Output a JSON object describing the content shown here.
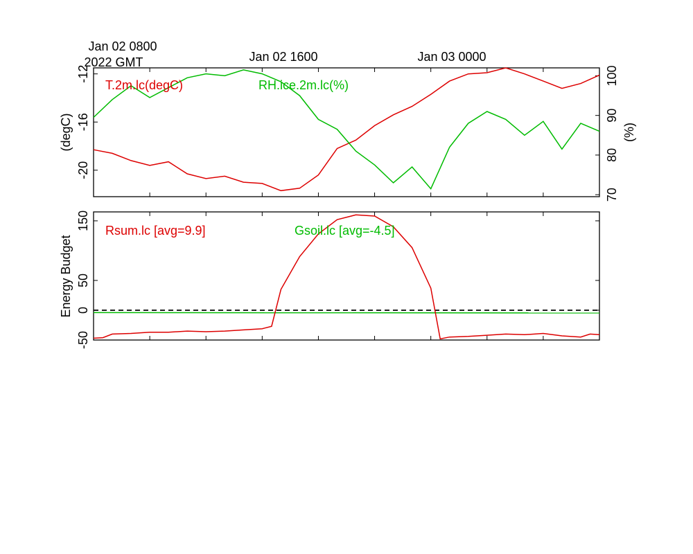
{
  "chart_data": [
    {
      "type": "line",
      "time_axis": {
        "range": [
          "Jan 02 0600",
          "Jan 03 0900"
        ],
        "ticks": [
          "Jan 02 0600",
          "Jan 02 0900",
          "Jan 02 1200",
          "Jan 02 1500",
          "Jan 02 1800",
          "Jan 02 2100",
          "Jan 03 0000",
          "Jan 03 0300",
          "Jan 03 0600"
        ],
        "labels": [
          {
            "time": "Jan 02 0800",
            "text": "Jan 02 0800"
          },
          {
            "time": "Jan 02 1600",
            "text": "Jan 02 1600"
          },
          {
            "time": "Jan 03 0000",
            "text": "Jan 03 0000"
          }
        ],
        "year_label": "2022 GMT"
      },
      "y_left": {
        "label": "(degC)",
        "range": [
          -22.2,
          -11.5
        ],
        "ticks": [
          -20,
          -16,
          -12
        ]
      },
      "y_right": {
        "label": "(%)",
        "range": [
          69.5,
          102
        ],
        "ticks": [
          70,
          80,
          90,
          100
        ]
      },
      "grid": false,
      "series": [
        {
          "name": "T.2m.lc(degC)",
          "axis": "left",
          "color": "#dd0000",
          "x": [
            "Jan 02 0600",
            "Jan 02 0700",
            "Jan 02 0800",
            "Jan 02 0900",
            "Jan 02 1000",
            "Jan 02 1100",
            "Jan 02 1200",
            "Jan 02 1300",
            "Jan 02 1400",
            "Jan 02 1500",
            "Jan 02 1600",
            "Jan 02 1700",
            "Jan 02 1800",
            "Jan 02 1900",
            "Jan 02 2000",
            "Jan 02 2100",
            "Jan 02 2200",
            "Jan 02 2300",
            "Jan 03 0000",
            "Jan 03 0100",
            "Jan 03 0200",
            "Jan 03 0300",
            "Jan 03 0400",
            "Jan 03 0500",
            "Jan 03 0600",
            "Jan 03 0700",
            "Jan 03 0800",
            "Jan 03 0900"
          ],
          "values": [
            -18.3,
            -18.6,
            -19.2,
            -19.6,
            -19.3,
            -20.3,
            -20.7,
            -20.5,
            -21.0,
            -21.1,
            -21.7,
            -21.5,
            -20.4,
            -18.2,
            -17.5,
            -16.3,
            -15.4,
            -14.7,
            -13.7,
            -12.6,
            -12.0,
            -11.9,
            -11.5,
            -12.0,
            -12.6,
            -13.2,
            -12.8,
            -12.1
          ]
        },
        {
          "name": "RH.ice.2m.lc(%)",
          "axis": "right",
          "color": "#00bb00",
          "x": [
            "Jan 02 0600",
            "Jan 02 0700",
            "Jan 02 0800",
            "Jan 02 0900",
            "Jan 02 1000",
            "Jan 02 1100",
            "Jan 02 1200",
            "Jan 02 1300",
            "Jan 02 1400",
            "Jan 02 1500",
            "Jan 02 1600",
            "Jan 02 1700",
            "Jan 02 1800",
            "Jan 02 1900",
            "Jan 02 2000",
            "Jan 02 2100",
            "Jan 02 2200",
            "Jan 02 2300",
            "Jan 03 0000",
            "Jan 03 0100",
            "Jan 03 0200",
            "Jan 03 0300",
            "Jan 03 0400",
            "Jan 03 0500",
            "Jan 03 0600",
            "Jan 03 0700",
            "Jan 03 0800",
            "Jan 03 0900"
          ],
          "values": [
            89.5,
            94.0,
            97.5,
            94.5,
            97.0,
            99.5,
            100.5,
            100.0,
            101.5,
            100.5,
            98.5,
            95.0,
            89.0,
            86.5,
            81.0,
            77.5,
            73.0,
            77.0,
            71.5,
            82.0,
            88.0,
            91.0,
            89.0,
            85.0,
            88.5,
            81.5,
            88.0,
            86.0
          ]
        }
      ]
    },
    {
      "type": "line",
      "time_axis": {
        "range": [
          "Jan 02 0600",
          "Jan 03 0900"
        ]
      },
      "y": {
        "label": "Energy Budget",
        "range": [
          -50,
          165
        ],
        "ticks": [
          -50,
          0,
          50,
          150
        ]
      },
      "reference_line": {
        "y": 0,
        "style": "dashed",
        "color": "#000000"
      },
      "grid": false,
      "series": [
        {
          "name": "Rsum.lc [avg=9.9]",
          "color": "#dd0000",
          "x": [
            "Jan 02 0600",
            "Jan 02 0630",
            "Jan 02 0700",
            "Jan 02 0800",
            "Jan 02 0900",
            "Jan 02 1000",
            "Jan 02 1100",
            "Jan 02 1200",
            "Jan 02 1300",
            "Jan 02 1400",
            "Jan 02 1500",
            "Jan 02 1530",
            "Jan 02 1600",
            "Jan 02 1700",
            "Jan 02 1800",
            "Jan 02 1900",
            "Jan 02 2000",
            "Jan 02 2100",
            "Jan 02 2200",
            "Jan 02 2300",
            "Jan 03 0000",
            "Jan 03 0030",
            "Jan 03 0100",
            "Jan 03 0200",
            "Jan 03 0300",
            "Jan 03 0400",
            "Jan 03 0500",
            "Jan 03 0600",
            "Jan 03 0700",
            "Jan 03 0800",
            "Jan 03 0830",
            "Jan 03 0900"
          ],
          "values": [
            -47,
            -46,
            -40,
            -39,
            -37,
            -37,
            -35,
            -36,
            -35,
            -33,
            -31,
            -27,
            35,
            90,
            128,
            152,
            160,
            158,
            140,
            105,
            37,
            -48,
            -45,
            -44,
            -42,
            -40,
            -41,
            -39,
            -43,
            -45,
            -40,
            -41
          ]
        },
        {
          "name": "Gsoil.lc [avg=-4.5]",
          "color": "#00bb00",
          "x": [
            "Jan 02 0600",
            "Jan 03 0900"
          ],
          "values": [
            -4.0,
            -4.6
          ]
        }
      ]
    }
  ]
}
